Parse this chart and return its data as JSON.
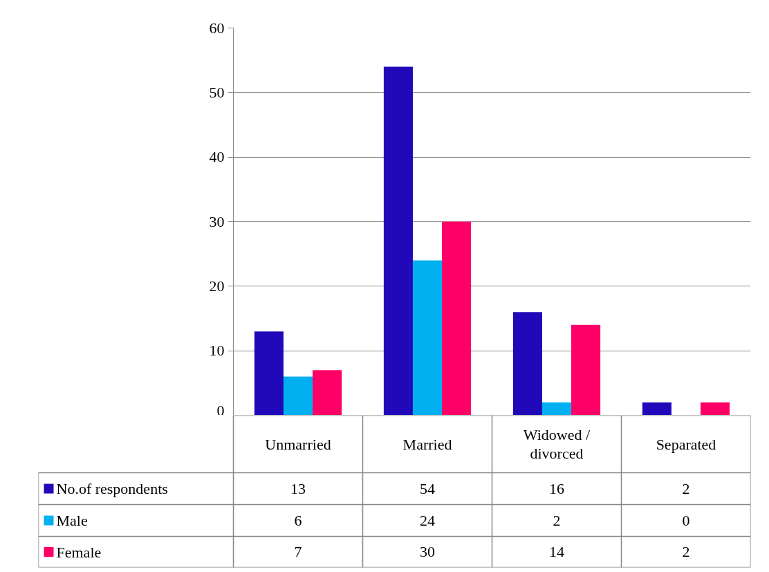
{
  "chart_data": {
    "type": "bar",
    "categories": [
      "Unmarried",
      "Married",
      "Widowed / divorced",
      "Separated"
    ],
    "series": [
      {
        "name": "No.of respondents",
        "color": "#2108b8",
        "values": [
          13,
          54,
          16,
          2
        ]
      },
      {
        "name": "Male",
        "color": "#00b0f0",
        "values": [
          6,
          24,
          2,
          0
        ]
      },
      {
        "name": "Female",
        "color": "#ff0066",
        "values": [
          7,
          30,
          14,
          2
        ]
      }
    ],
    "ylim": [
      0,
      60
    ],
    "yticks": [
      0,
      10,
      20,
      30,
      40,
      50,
      60
    ],
    "grid": "y",
    "legend": "bottom",
    "data_labels": true
  }
}
